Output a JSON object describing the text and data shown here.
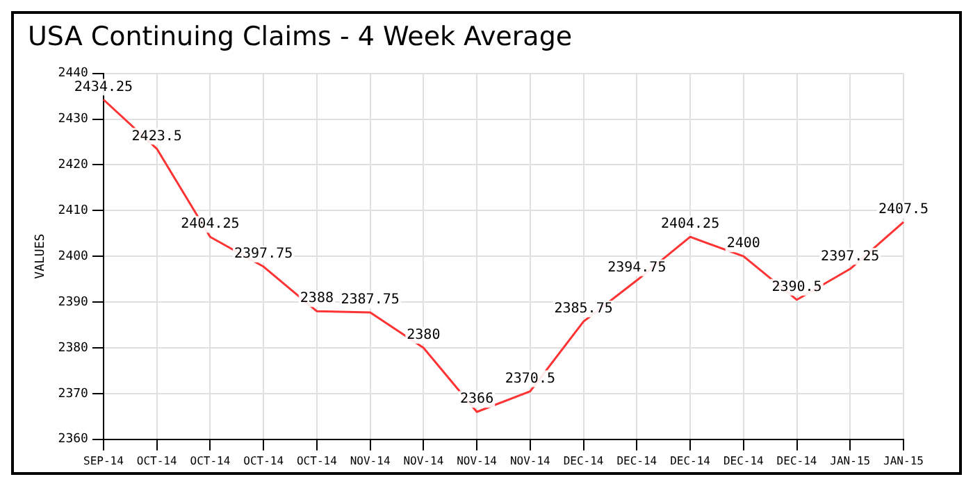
{
  "chart_data": {
    "type": "line",
    "title": "USA Continuing Claims - 4 Week Average",
    "ylabel": "VALUES",
    "categories": [
      "SEP-14",
      "OCT-14",
      "OCT-14",
      "OCT-14",
      "OCT-14",
      "NOV-14",
      "NOV-14",
      "NOV-14",
      "NOV-14",
      "DEC-14",
      "DEC-14",
      "DEC-14",
      "DEC-14",
      "DEC-14",
      "JAN-15",
      "JAN-15"
    ],
    "series": [
      {
        "color": "#ff3333",
        "values": [
          2434.25,
          2423.5,
          2404.25,
          2397.75,
          2388,
          2387.75,
          2380,
          2366,
          2370.5,
          2385.75,
          2394.75,
          2404.25,
          2400,
          2390.5,
          2397.25,
          2407.5
        ]
      }
    ],
    "ylim": [
      2360,
      2440
    ],
    "yticks": [
      2360,
      2370,
      2380,
      2390,
      2400,
      2410,
      2420,
      2430,
      2440
    ],
    "grid": true,
    "legend": false,
    "marker": "none",
    "line_style": "solid",
    "data_labels": true
  }
}
